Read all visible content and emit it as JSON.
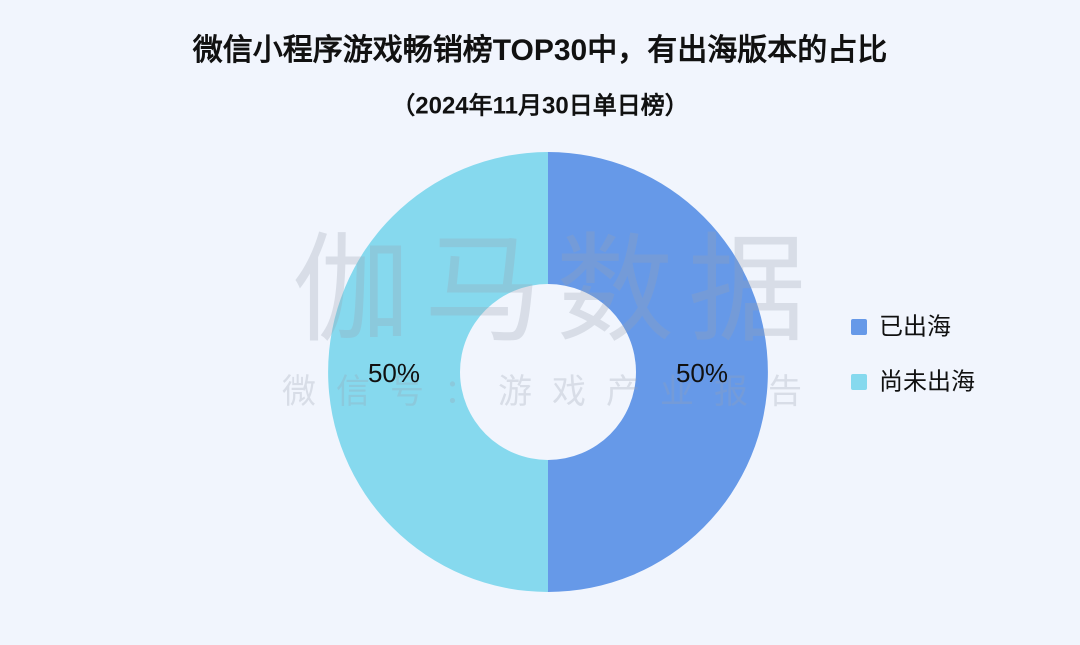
{
  "chart_data": {
    "type": "donut",
    "title": "微信小程序游戏畅销榜TOP30中，有出海版本的占比",
    "subtitle": "（2024年11月30日单日榜）",
    "categories": [
      "已出海",
      "尚未出海"
    ],
    "values": [
      50,
      50
    ],
    "value_labels": [
      "50%",
      "50%"
    ],
    "colors": [
      "#6699e8",
      "#86d9ee"
    ],
    "legend": "right",
    "watermark": [
      "伽马数据",
      "微信号：游戏产业报告"
    ]
  }
}
